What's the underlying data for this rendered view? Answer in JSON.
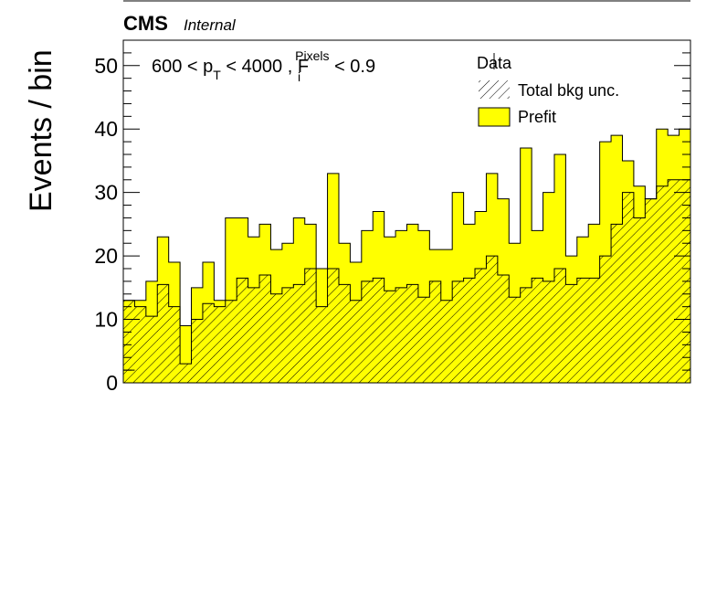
{
  "header": {
    "experiment": "CMS",
    "status": "Internal"
  },
  "selection": {
    "part1": "600 < p",
    "sub1": "T",
    "part2": " < 4000 , F",
    "sup2": "Pixels",
    "sub2": "i",
    "part3": " < 0.9"
  },
  "legend": {
    "data_label": "Data",
    "unc_label": "Total bkg unc.",
    "prefit_label": "Prefit"
  },
  "colors": {
    "prefit_fill": "#ffff00",
    "hatch": "#000000",
    "axis": "#000000"
  },
  "chart_data": {
    "type": "bar",
    "subtype": "stacked-histogram",
    "title": "",
    "xlabel": "",
    "ylabel": "Events / bin",
    "xlim": [
      0,
      50
    ],
    "ylim": [
      0,
      54
    ],
    "y_ticks": [
      0,
      10,
      20,
      30,
      40,
      50
    ],
    "grid": false,
    "legend_position": "top-right",
    "bin_edges": [
      0,
      1,
      2,
      3,
      4,
      5,
      6,
      7,
      8,
      9,
      10,
      11,
      12,
      13,
      14,
      15,
      16,
      17,
      18,
      19,
      20,
      21,
      22,
      23,
      24,
      25,
      26,
      27,
      28,
      29,
      30,
      31,
      32,
      33,
      34,
      35,
      36,
      37,
      38,
      39,
      40,
      41,
      42,
      43,
      44,
      45,
      46,
      47,
      48,
      49,
      50
    ],
    "series": [
      {
        "name": "Prefit",
        "values": [
          13,
          13,
          16,
          23,
          19,
          9,
          15,
          19,
          13,
          26,
          26,
          23,
          25,
          21,
          22,
          26,
          25,
          18,
          33,
          22,
          19,
          24,
          27,
          23,
          24,
          25,
          24,
          21,
          21,
          30,
          25,
          27,
          33,
          29,
          22,
          37,
          24,
          30,
          36,
          20,
          23,
          25,
          38,
          39,
          35,
          31,
          29,
          40,
          39,
          40
        ]
      },
      {
        "name": "Total bkg unc.",
        "values_upper": [
          13,
          12,
          10.5,
          15.5,
          12,
          3,
          10,
          12.5,
          12,
          13,
          16.5,
          15,
          17,
          14,
          15,
          15.5,
          18,
          12,
          18,
          15.5,
          13,
          16,
          16.5,
          14.5,
          15,
          15.5,
          13.5,
          16,
          13,
          16,
          16.5,
          18,
          20,
          17,
          13.5,
          15,
          16.5,
          16,
          18,
          15.5,
          16.5,
          16.5,
          20,
          25,
          30,
          26,
          29,
          31,
          32,
          32
        ],
        "values_lower": [
          2,
          12,
          10.5,
          15.5,
          12,
          3,
          10,
          12.5,
          12,
          13,
          16.5,
          15,
          17,
          14,
          15,
          15.5,
          18,
          12,
          18,
          15.5,
          13,
          16,
          16.5,
          14.5,
          15,
          15.5,
          13.5,
          16,
          13,
          16,
          16.5,
          18,
          20,
          17,
          13.5,
          15,
          16.5,
          16,
          18,
          15.5,
          16.5,
          16.5,
          20,
          25,
          30,
          26,
          29,
          31,
          32,
          32
        ]
      }
    ]
  }
}
